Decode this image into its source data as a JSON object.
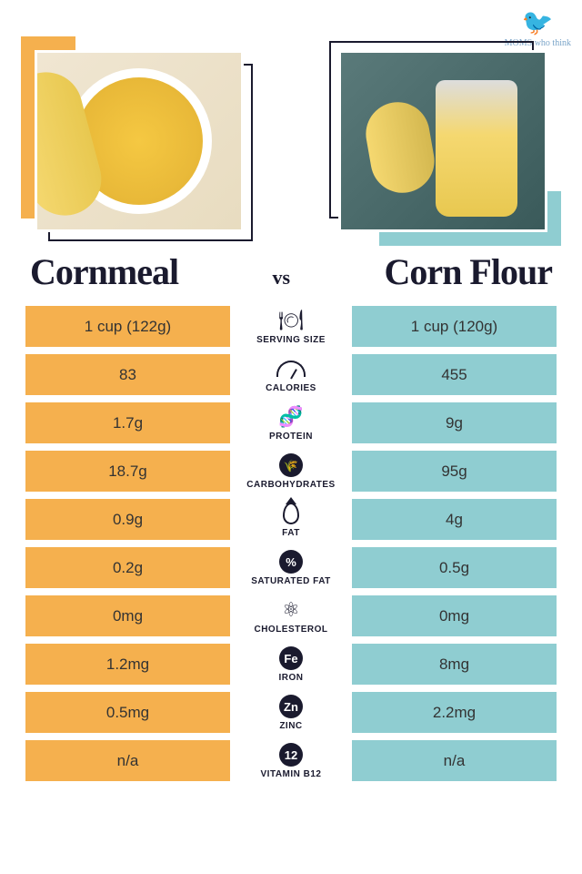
{
  "logo_text": "MOMS who think",
  "left_title": "Cornmeal",
  "right_title": "Corn Flour",
  "vs": "vs",
  "colors": {
    "left_cell": "#f5b04e",
    "right_cell": "#8fcdd1",
    "text": "#1a1a2e"
  },
  "rows": [
    {
      "label": "SERVING SIZE",
      "icon": "plate",
      "left": "1 cup (122g)",
      "right": "1 cup (120g)"
    },
    {
      "label": "CALORIES",
      "icon": "gauge",
      "left": "83",
      "right": "455"
    },
    {
      "label": "PROTEIN",
      "icon": "dna",
      "left": "1.7g",
      "right": "9g"
    },
    {
      "label": "CARBOHYDRATES",
      "icon": "wheat",
      "left": "18.7g",
      "right": "95g"
    },
    {
      "label": "FAT",
      "icon": "drop",
      "left": "0.9g",
      "right": "4g"
    },
    {
      "label": "SATURATED FAT",
      "icon": "drop-pct",
      "left": "0.2g",
      "right": "0.5g"
    },
    {
      "label": "CHOLESTEROL",
      "icon": "molecule",
      "left": "0mg",
      "right": "0mg"
    },
    {
      "label": "IRON",
      "icon": "Fe",
      "left": "1.2mg",
      "right": "8mg"
    },
    {
      "label": "ZINC",
      "icon": "Zn",
      "left": "0.5mg",
      "right": "2.2mg"
    },
    {
      "label": "VITAMIN B12",
      "icon": "12",
      "left": "n/a",
      "right": "n/a"
    }
  ]
}
